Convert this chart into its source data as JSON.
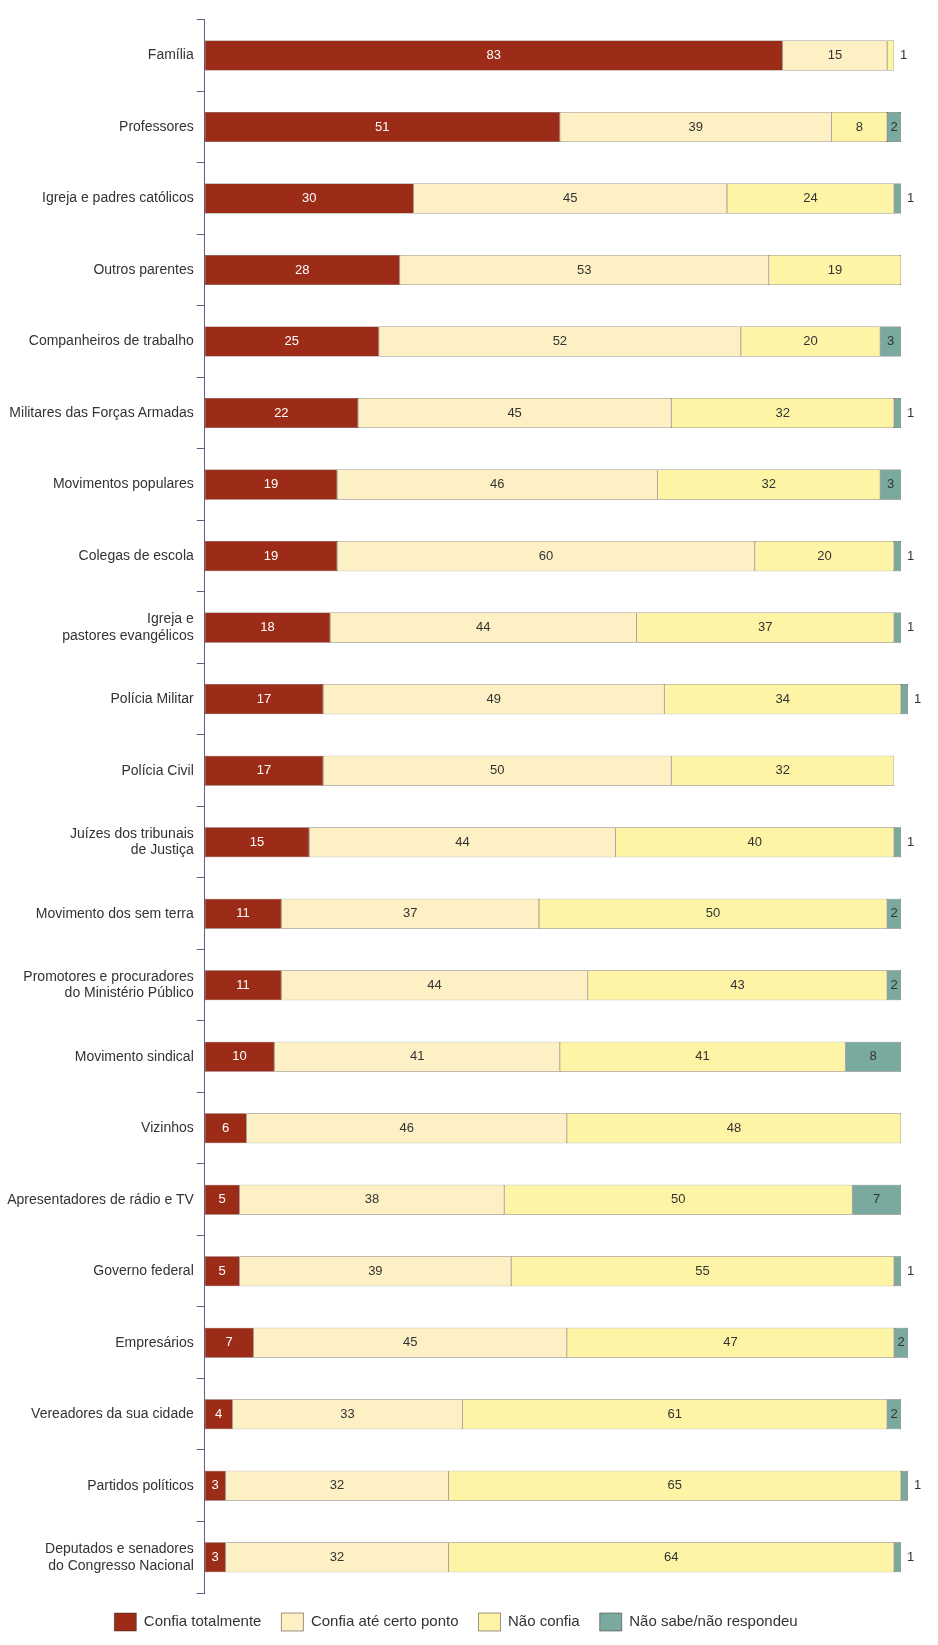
{
  "chart_data": {
    "type": "bar",
    "orientation": "horizontal",
    "stacked": true,
    "categories": [
      "Família",
      "Professores",
      "Igreja e padres católicos",
      "Outros parentes",
      "Companheiros de trabalho",
      "Militares das Forças Armadas",
      "Movimentos populares",
      "Colegas de escola",
      "Igreja e\npastores evangélicos",
      "Polícia Militar",
      "Polícia Civil",
      "Juízes dos tribunais\nde Justiça",
      "Movimento dos sem terra",
      "Promotores e procuradores\ndo Ministério Público",
      "Movimento sindical",
      "Vizinhos",
      "Apresentadores de rádio e TV",
      "Governo federal",
      "Empresários",
      "Vereadores da sua cidade",
      "Partidos políticos",
      "Deputados e senadores\ndo Congresso Nacional"
    ],
    "series": [
      {
        "name": "Confia totalmente",
        "color": "#9c2c17",
        "values": [
          83,
          51,
          30,
          28,
          25,
          22,
          19,
          19,
          18,
          17,
          17,
          15,
          11,
          11,
          10,
          6,
          5,
          5,
          7,
          4,
          3,
          3
        ]
      },
      {
        "name": "Confia até certo ponto",
        "color": "#fcf0c4",
        "values": [
          15,
          39,
          45,
          53,
          52,
          45,
          46,
          60,
          44,
          49,
          50,
          44,
          37,
          44,
          41,
          46,
          38,
          39,
          45,
          33,
          32,
          32
        ]
      },
      {
        "name": "Não confia",
        "color": "#fdf4a6",
        "values": [
          1,
          8,
          24,
          19,
          20,
          32,
          32,
          20,
          37,
          34,
          32,
          40,
          50,
          43,
          41,
          48,
          50,
          55,
          47,
          61,
          65,
          64
        ]
      },
      {
        "name": "Não sabe/não respondeu",
        "color": "#7aa9a0",
        "values": [
          null,
          2,
          1,
          null,
          3,
          1,
          3,
          1,
          1,
          1,
          null,
          1,
          2,
          2,
          8,
          null,
          7,
          1,
          2,
          2,
          1,
          1
        ]
      }
    ],
    "xlim": [
      0,
      101
    ],
    "data_labels": true,
    "tick_labels": "y",
    "grid": false,
    "legend": "bottom"
  }
}
